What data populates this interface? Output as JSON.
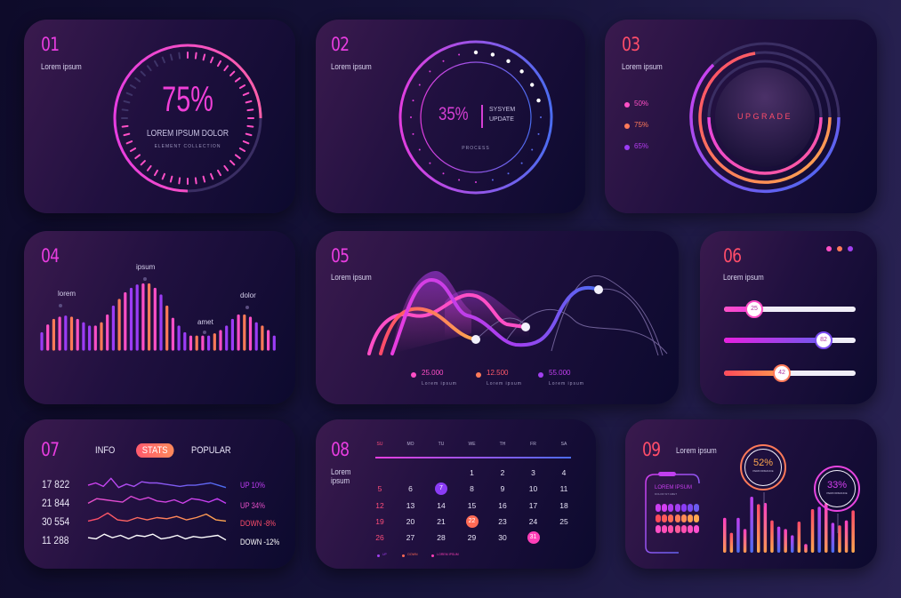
{
  "panels": {
    "p01": {
      "number": "01",
      "subtitle": "Lorem ipsum",
      "gauge_value": "75%",
      "gauge_label": "LOREM IPSUM DOLOR",
      "gauge_caption": "ELEMENT COLLECTION",
      "percent": 75
    },
    "p02": {
      "number": "02",
      "subtitle": "Lorem ipsum",
      "value": "35%",
      "label_line1": "SYSYEM",
      "label_line2": "UPDATE",
      "caption": "PROCESS",
      "percent": 35
    },
    "p03": {
      "number": "03",
      "subtitle": "Lorem ipsum",
      "center_label": "UPGRADE",
      "legend": [
        {
          "label": "50%",
          "color": "#ff4fc6"
        },
        {
          "label": "75%",
          "color": "#ff7a59"
        },
        {
          "label": "65%",
          "color": "#9b3cf5"
        }
      ]
    },
    "p04": {
      "number": "04",
      "labels": [
        "lorem",
        "ipsum",
        "amet",
        "dolor"
      ]
    },
    "p05": {
      "number": "05",
      "subtitle": "Lorem ipsum",
      "legend": [
        {
          "value": "25.000",
          "caption": "Lorem ipsum",
          "color": "#ff4fc6"
        },
        {
          "value": "12.500",
          "caption": "Lorem ipsum",
          "color": "#ff7a59"
        },
        {
          "value": "55.000",
          "caption": "Lorem ipsum",
          "color": "#a23ff0"
        }
      ]
    },
    "p06": {
      "number": "06",
      "subtitle": "Lorem ipsum",
      "sliders": [
        {
          "value": "25",
          "percent": 25
        },
        {
          "value": "82",
          "percent": 82
        },
        {
          "value": "42",
          "percent": 42
        }
      ]
    },
    "p07": {
      "number": "07",
      "tabs": [
        "INFO",
        "STATS",
        "POPULAR"
      ],
      "active_tab": "STATS",
      "rows": [
        {
          "value": "17 822",
          "trend": "UP 10%",
          "color": "#c13cf5"
        },
        {
          "value": "21 844",
          "trend": "UP 34%",
          "color": "#e84fc9"
        },
        {
          "value": "30 554",
          "trend": "DOWN -8%",
          "color": "#ff5a5a"
        },
        {
          "value": "11 288",
          "trend": "DOWN -12%",
          "color": "#ffffff"
        }
      ]
    },
    "p08": {
      "number": "08",
      "subtitle_line1": "Lorem",
      "subtitle_line2": "ipsum",
      "weekdays": [
        "SU",
        "MO",
        "TU",
        "WE",
        "TH",
        "FR",
        "SA"
      ],
      "weeks": [
        [
          "",
          "",
          "",
          "1",
          "2",
          "3",
          "4"
        ],
        [
          "5",
          "6",
          "7",
          "8",
          "9",
          "10",
          "11"
        ],
        [
          "12",
          "13",
          "14",
          "15",
          "16",
          "17",
          "18"
        ],
        [
          "19",
          "20",
          "21",
          "22",
          "23",
          "24",
          "25"
        ],
        [
          "26",
          "27",
          "28",
          "29",
          "30",
          "31",
          ""
        ]
      ],
      "highlights": {
        "7": "#8b3cf5",
        "22": "#ff6a55",
        "31": "#ff3fb8"
      },
      "legend": [
        {
          "label": "UP",
          "color": "#a23ff0"
        },
        {
          "label": "DOWN",
          "color": "#ff6a55"
        },
        {
          "label": "LOREM IPSUM",
          "color": "#ff3fb8"
        }
      ]
    },
    "p09": {
      "number": "09",
      "subtitle": "Lorem ipsum",
      "card_title": "LOREM IPSUM",
      "card_caption": "DOLOR SIT AMET",
      "kpi1_value": "52%",
      "kpi1_caption": "PERFORMANCE",
      "kpi2_value": "33%",
      "kpi2_caption": "PERFORMANCE"
    }
  },
  "chart_data": [
    {
      "type": "bar",
      "title": "04",
      "annotations": [
        "lorem",
        "ipsum",
        "amet",
        "dolor"
      ],
      "values": [
        14,
        21,
        26,
        28,
        29,
        28,
        26,
        23,
        20,
        20,
        23,
        30,
        38,
        44,
        50,
        54,
        57,
        58,
        58,
        54,
        48,
        38,
        27,
        20,
        14,
        11,
        11,
        11,
        11,
        13,
        16,
        20,
        26,
        30,
        30,
        28,
        23,
        20,
        16,
        11
      ]
    },
    {
      "type": "line",
      "title": "05",
      "series": [
        {
          "name": "25.000",
          "values": [
            10,
            38,
            30,
            55,
            52,
            30,
            20
          ]
        },
        {
          "name": "12.500",
          "values": [
            5,
            40,
            15,
            10,
            25,
            60,
            48
          ]
        },
        {
          "name": "55.000",
          "values": [
            0,
            70,
            35,
            5,
            22,
            75,
            55
          ]
        }
      ]
    },
    {
      "type": "line",
      "title": "07",
      "series": [
        {
          "name": "17 822",
          "values": [
            3,
            5,
            2,
            9,
            1,
            4,
            2,
            6,
            5,
            5,
            4,
            3,
            2,
            3,
            3,
            4,
            5,
            3,
            1
          ]
        },
        {
          "name": "21 844",
          "values": [
            2,
            6,
            5,
            4,
            3,
            8,
            5,
            7,
            4,
            3,
            5,
            2,
            6,
            5,
            3,
            6,
            2
          ]
        },
        {
          "name": "30 554",
          "values": [
            2,
            4,
            9,
            3,
            2,
            5,
            3,
            5,
            4,
            6,
            3,
            5,
            8,
            3,
            2
          ]
        },
        {
          "name": "11 288",
          "values": [
            3,
            2,
            6,
            3,
            5,
            2,
            5,
            4,
            6,
            2,
            3,
            5,
            2,
            4,
            3,
            4,
            5,
            1
          ]
        }
      ]
    },
    {
      "type": "bar",
      "title": "09",
      "values": [
        28,
        16,
        28,
        19,
        45,
        39,
        40,
        26,
        21,
        19,
        14,
        25,
        7,
        35,
        37,
        40,
        24,
        22,
        26,
        34
      ],
      "annotations": [
        "52% PERFORMANCE",
        "33% PERFORMANCE"
      ]
    }
  ]
}
